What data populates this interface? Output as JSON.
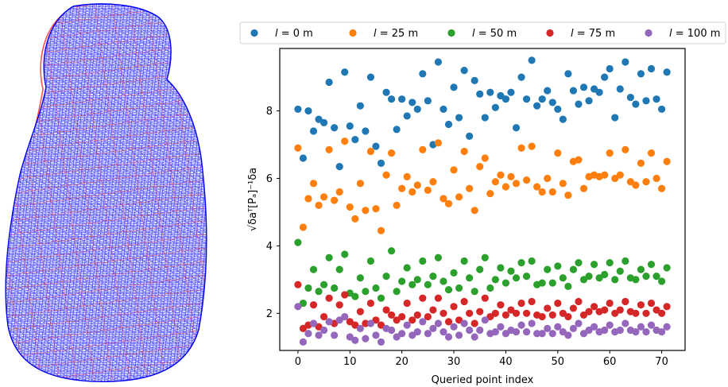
{
  "figure": {
    "left_panel": {
      "description": "wireframe mesh",
      "colors": {
        "mesh_a": "#0000ff",
        "mesh_b": "#ff0000"
      }
    }
  },
  "chart_data": {
    "type": "scatter",
    "xlabel": "Queried point index",
    "ylabel": "√δaᵀ[Pₐ]⁻¹δa",
    "xlim": [
      -3.5,
      74.5
    ],
    "ylim": [
      0.9,
      9.85
    ],
    "xticks": [
      "0",
      "10",
      "20",
      "30",
      "40",
      "50",
      "60",
      "70"
    ],
    "yticks": [
      "2",
      "4",
      "6",
      "8"
    ],
    "grid": false,
    "legend_position": "top",
    "series": [
      {
        "name": "l = 0 m",
        "legend_italic": "l",
        "legend_rest": " = 0 m",
        "color": "#1f77b4",
        "x": [
          0,
          1,
          2,
          3,
          4,
          5,
          6,
          7,
          8,
          9,
          10,
          11,
          12,
          13,
          14,
          15,
          16,
          17,
          18,
          19,
          20,
          21,
          22,
          23,
          24,
          25,
          26,
          27,
          28,
          29,
          30,
          31,
          32,
          33,
          34,
          35,
          36,
          37,
          38,
          39,
          40,
          41,
          42,
          43,
          44,
          45,
          46,
          47,
          48,
          49,
          50,
          51,
          52,
          53,
          54,
          55,
          56,
          57,
          58,
          59,
          60,
          61,
          62,
          63,
          64,
          65,
          66,
          67,
          68,
          69,
          70,
          71
        ],
        "values": [
          8.05,
          6.6,
          8.0,
          7.4,
          7.75,
          7.65,
          8.85,
          7.5,
          6.35,
          9.15,
          7.55,
          7.15,
          8.15,
          7.4,
          9.0,
          6.95,
          6.45,
          8.55,
          8.35,
          7.45,
          8.35,
          7.85,
          8.25,
          8.05,
          9.1,
          8.3,
          7.0,
          9.45,
          8.05,
          7.6,
          8.7,
          7.8,
          9.2,
          7.25,
          8.9,
          8.5,
          7.8,
          8.55,
          8.1,
          8.45,
          8.35,
          8.55,
          7.5,
          9.0,
          8.35,
          9.5,
          8.15,
          8.35,
          8.6,
          8.25,
          8.05,
          7.75,
          9.1,
          8.6,
          8.2,
          8.7,
          8.3,
          8.65,
          8.55,
          9.0,
          9.25,
          7.8,
          8.65,
          9.45,
          8.4,
          8.2,
          9.1,
          8.3,
          9.25,
          8.35,
          8.05,
          9.15
        ]
      },
      {
        "name": "l = 25 m",
        "legend_italic": "l",
        "legend_rest": " = 25 m",
        "color": "#ff7f0e",
        "x": [
          0,
          1,
          2,
          3,
          4,
          5,
          6,
          7,
          8,
          9,
          10,
          11,
          12,
          13,
          14,
          15,
          16,
          17,
          18,
          19,
          20,
          21,
          22,
          23,
          24,
          25,
          26,
          27,
          28,
          29,
          30,
          31,
          32,
          33,
          34,
          35,
          36,
          37,
          38,
          39,
          40,
          41,
          42,
          43,
          44,
          45,
          46,
          47,
          48,
          49,
          50,
          51,
          52,
          53,
          54,
          55,
          56,
          57,
          58,
          59,
          60,
          61,
          62,
          63,
          64,
          65,
          66,
          67,
          68,
          69,
          70,
          71
        ],
        "values": [
          6.9,
          4.55,
          5.4,
          5.85,
          5.2,
          5.45,
          6.85,
          5.35,
          5.6,
          7.1,
          5.15,
          4.8,
          5.85,
          5.05,
          6.8,
          5.1,
          4.45,
          6.1,
          6.75,
          5.2,
          5.7,
          6.05,
          5.6,
          5.8,
          6.85,
          5.65,
          5.9,
          7.05,
          5.4,
          5.25,
          6.25,
          5.45,
          6.8,
          5.7,
          5.05,
          6.35,
          6.6,
          5.55,
          5.9,
          6.1,
          5.75,
          6.05,
          5.85,
          6.9,
          5.95,
          6.95,
          5.75,
          5.6,
          6.0,
          5.6,
          6.75,
          5.85,
          5.5,
          6.5,
          6.55,
          5.7,
          6.05,
          6.1,
          6.05,
          6.1,
          6.75,
          6.0,
          6.1,
          6.85,
          5.9,
          5.8,
          6.45,
          5.9,
          6.75,
          6.0,
          5.7,
          6.5
        ]
      },
      {
        "name": "l = 50 m",
        "legend_italic": "l",
        "legend_rest": " = 50 m",
        "color": "#2ca02c",
        "x": [
          0,
          1,
          2,
          3,
          4,
          5,
          6,
          7,
          8,
          9,
          10,
          11,
          12,
          13,
          14,
          15,
          16,
          17,
          18,
          19,
          20,
          21,
          22,
          23,
          24,
          25,
          26,
          27,
          28,
          29,
          30,
          31,
          32,
          33,
          34,
          35,
          36,
          37,
          38,
          39,
          40,
          41,
          42,
          43,
          44,
          45,
          46,
          47,
          48,
          49,
          50,
          51,
          52,
          53,
          54,
          55,
          56,
          57,
          58,
          59,
          60,
          61,
          62,
          63,
          64,
          65,
          66,
          67,
          68,
          69,
          70,
          71
        ],
        "values": [
          4.1,
          2.3,
          2.75,
          3.3,
          2.65,
          2.85,
          3.65,
          2.75,
          3.3,
          3.75,
          2.6,
          2.5,
          3.05,
          2.65,
          3.55,
          2.75,
          2.45,
          3.1,
          3.85,
          2.65,
          2.95,
          3.35,
          2.85,
          3.0,
          3.55,
          2.85,
          3.1,
          3.65,
          2.95,
          2.7,
          3.2,
          2.75,
          3.55,
          3.05,
          2.65,
          3.3,
          3.65,
          2.75,
          3.0,
          3.35,
          2.9,
          3.25,
          3.05,
          3.5,
          3.1,
          3.55,
          2.85,
          2.9,
          3.3,
          2.9,
          3.4,
          3.05,
          2.8,
          3.3,
          3.5,
          3.0,
          3.1,
          3.45,
          3.05,
          3.15,
          3.5,
          3.0,
          3.25,
          3.55,
          3.05,
          3.0,
          3.3,
          3.1,
          3.45,
          3.1,
          2.95,
          3.35
        ]
      },
      {
        "name": "l = 75 m",
        "legend_italic": "l",
        "legend_rest": " = 75 m",
        "color": "#d62728",
        "x": [
          0,
          1,
          2,
          3,
          4,
          5,
          6,
          7,
          8,
          9,
          10,
          11,
          12,
          13,
          14,
          15,
          16,
          17,
          18,
          19,
          20,
          21,
          22,
          23,
          24,
          25,
          26,
          27,
          28,
          29,
          30,
          31,
          32,
          33,
          34,
          35,
          36,
          37,
          38,
          39,
          40,
          41,
          42,
          43,
          44,
          45,
          46,
          47,
          48,
          49,
          50,
          51,
          52,
          53,
          54,
          55,
          56,
          57,
          58,
          59,
          60,
          61,
          62,
          63,
          64,
          65,
          66,
          67,
          68,
          69,
          70,
          71
        ],
        "values": [
          2.85,
          1.55,
          1.65,
          2.25,
          1.6,
          1.9,
          2.45,
          1.7,
          2.25,
          2.55,
          1.75,
          1.65,
          2.05,
          1.7,
          2.3,
          1.8,
          1.65,
          2.1,
          1.95,
          1.8,
          1.9,
          2.3,
          1.8,
          1.95,
          2.45,
          1.9,
          2.1,
          2.45,
          2.0,
          1.75,
          2.2,
          1.8,
          2.35,
          2.0,
          1.7,
          2.05,
          2.45,
          1.9,
          2.0,
          2.25,
          1.95,
          2.1,
          2.0,
          2.3,
          2.0,
          2.35,
          1.95,
          1.9,
          2.15,
          1.95,
          2.3,
          2.0,
          1.9,
          2.15,
          2.35,
          1.95,
          2.05,
          2.2,
          2.05,
          2.1,
          2.3,
          2.0,
          2.1,
          2.35,
          2.05,
          2.0,
          2.25,
          2.0,
          2.3,
          2.1,
          2.0,
          2.2
        ]
      },
      {
        "name": "l = 100 m",
        "legend_italic": "l",
        "legend_rest": " = 100 m",
        "color": "#9467bd",
        "x": [
          0,
          1,
          2,
          3,
          4,
          5,
          6,
          7,
          8,
          9,
          10,
          11,
          12,
          13,
          14,
          15,
          16,
          17,
          18,
          19,
          20,
          21,
          22,
          23,
          24,
          25,
          26,
          27,
          28,
          29,
          30,
          31,
          32,
          33,
          34,
          35,
          36,
          37,
          38,
          39,
          40,
          41,
          42,
          43,
          44,
          45,
          46,
          47,
          48,
          49,
          50,
          51,
          52,
          53,
          54,
          55,
          56,
          57,
          58,
          59,
          60,
          61,
          62,
          63,
          64,
          65,
          66,
          67,
          68,
          69,
          70,
          71
        ],
        "values": [
          2.2,
          1.15,
          1.4,
          1.7,
          1.35,
          1.5,
          1.75,
          1.35,
          1.8,
          1.9,
          1.3,
          1.2,
          1.55,
          1.25,
          1.7,
          1.35,
          1.15,
          1.55,
          1.5,
          1.3,
          1.4,
          1.65,
          1.35,
          1.45,
          1.75,
          1.4,
          1.55,
          1.7,
          1.45,
          1.3,
          1.6,
          1.35,
          1.7,
          1.5,
          1.3,
          1.5,
          1.8,
          1.4,
          1.45,
          1.6,
          1.4,
          1.5,
          1.45,
          1.65,
          1.45,
          1.7,
          1.4,
          1.4,
          1.55,
          1.4,
          1.6,
          1.45,
          1.35,
          1.55,
          1.7,
          1.4,
          1.5,
          1.6,
          1.45,
          1.5,
          1.65,
          1.45,
          1.5,
          1.7,
          1.5,
          1.45,
          1.6,
          1.45,
          1.65,
          1.5,
          1.45,
          1.6
        ]
      }
    ]
  }
}
